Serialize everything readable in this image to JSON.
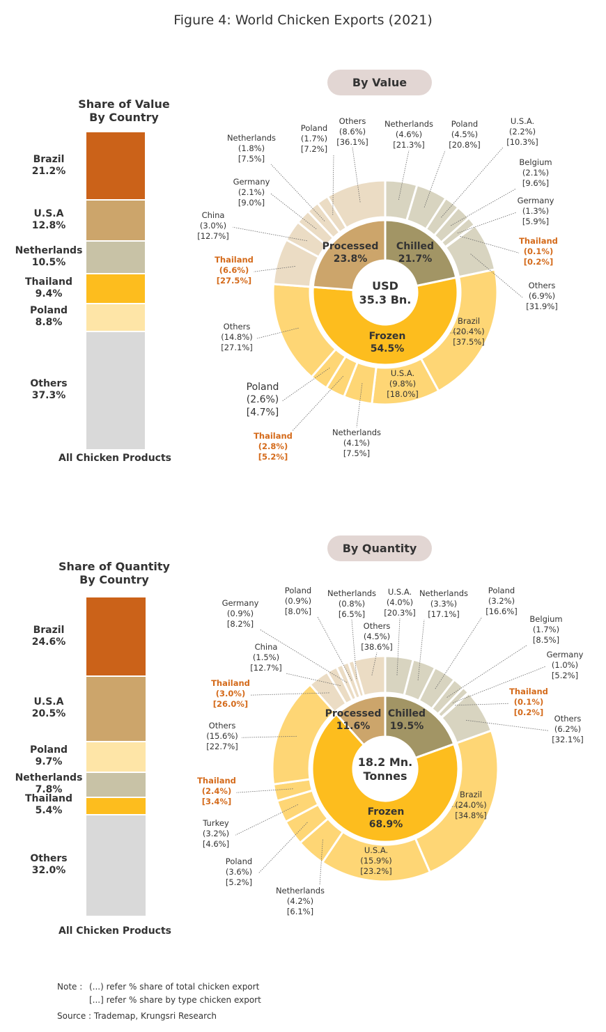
{
  "title": "Figure 4: World Chicken Exports (2021)",
  "colors": {
    "brazil": "#cb6219",
    "usa": "#cca56b",
    "netherlands": "#c8c2a6",
    "thailand": "#fdbd1e",
    "poland": "#fee5a7",
    "others": "#d9d9d9",
    "chilled": "#a29565",
    "processed": "#cca56b",
    "frozen": "#fdbd1e",
    "chilled_outer": "#d8d4c0",
    "processed_outer": "#ebdcc4",
    "frozen_outer": "#fed675",
    "highlight": "#d46a1a"
  },
  "notes": {
    "note_prefix": "Note :",
    "line1": "(...) refer % share of total chicken export",
    "line2": "[...] refer % share by type chicken export",
    "source": "Source : Trademap, Krungsri Research"
  },
  "chart_data": [
    {
      "type": "bar",
      "title": "Share of Value",
      "subtitle": "By Country",
      "xlabel": "All Chicken Products",
      "stacked": true,
      "series": [
        {
          "name": "Brazil",
          "value": 21.2,
          "label": "21.2%",
          "color": "brazil"
        },
        {
          "name": "U.S.A",
          "value": 12.8,
          "label": "12.8%",
          "color": "usa"
        },
        {
          "name": "Netherlands",
          "value": 10.5,
          "label": "10.5%",
          "color": "netherlands"
        },
        {
          "name": "Thailand",
          "value": 9.4,
          "label": "9.4%",
          "color": "thailand"
        },
        {
          "name": "Poland",
          "value": 8.8,
          "label": "8.8%",
          "color": "poland"
        },
        {
          "name": "Others",
          "value": 37.3,
          "label": "37.3%",
          "color": "others"
        }
      ]
    },
    {
      "type": "pie",
      "title": "By Value",
      "center_lines": [
        "USD",
        "35.3 Bn."
      ],
      "inner": [
        {
          "name": "Chilled",
          "value": 21.7,
          "label": "21.7%",
          "color": "chilled"
        },
        {
          "name": "Frozen",
          "value": 54.5,
          "label": "54.5%",
          "color": "frozen"
        },
        {
          "name": "Processed",
          "value": 23.8,
          "label": "23.8%",
          "color": "processed"
        }
      ],
      "outer": [
        {
          "group": "Chilled",
          "name": "Netherlands",
          "total": "(4.6%)",
          "by_type": "[21.3%]",
          "value": 4.6
        },
        {
          "group": "Chilled",
          "name": "Poland",
          "total": "(4.5%)",
          "by_type": "[20.8%]",
          "value": 4.5
        },
        {
          "group": "Chilled",
          "name": "U.S.A.",
          "total": "(2.2%)",
          "by_type": "[10.3%]",
          "value": 2.2
        },
        {
          "group": "Chilled",
          "name": "Belgium",
          "total": "(2.1%)",
          "by_type": "[9.6%]",
          "value": 2.1
        },
        {
          "group": "Chilled",
          "name": "Germany",
          "total": "(1.3%)",
          "by_type": "[5.9%]",
          "value": 1.3
        },
        {
          "group": "Chilled",
          "name": "Thailand",
          "total": "(0.1%)",
          "by_type": "[0.2%]",
          "value": 0.1,
          "highlight": true
        },
        {
          "group": "Chilled",
          "name": "Others",
          "total": "(6.9%)",
          "by_type": "[31.9%]",
          "value": 6.9
        },
        {
          "group": "Frozen",
          "name": "Brazil",
          "total": "(20.4%)",
          "by_type": "[37.5%]",
          "value": 20.4
        },
        {
          "group": "Frozen",
          "name": "U.S.A.",
          "total": "(9.8%)",
          "by_type": "[18.0%]",
          "value": 9.8
        },
        {
          "group": "Frozen",
          "name": "Netherlands",
          "total": "(4.1%)",
          "by_type": "[7.5%]",
          "value": 4.1
        },
        {
          "group": "Frozen",
          "name": "Thailand",
          "total": "(2.8%)",
          "by_type": "[5.2%]",
          "value": 2.8,
          "highlight": true
        },
        {
          "group": "Frozen",
          "name": "Poland",
          "total": "(2.6%)",
          "by_type": "[4.7%]",
          "value": 2.6
        },
        {
          "group": "Frozen",
          "name": "Others",
          "total": "(14.8%)",
          "by_type": "[27.1%]",
          "value": 14.8
        },
        {
          "group": "Processed",
          "name": "Thailand",
          "total": "(6.6%)",
          "by_type": "[27.5%]",
          "value": 6.6,
          "highlight": true
        },
        {
          "group": "Processed",
          "name": "China",
          "total": "(3.0%)",
          "by_type": "[12.7%]",
          "value": 3.0
        },
        {
          "group": "Processed",
          "name": "Germany",
          "total": "(2.1%)",
          "by_type": "[9.0%]",
          "value": 2.1
        },
        {
          "group": "Processed",
          "name": "Netherlands",
          "total": "(1.8%)",
          "by_type": "[7.5%]",
          "value": 1.8
        },
        {
          "group": "Processed",
          "name": "Poland",
          "total": "(1.7%)",
          "by_type": "[7.2%]",
          "value": 1.7
        },
        {
          "group": "Processed",
          "name": "Others",
          "total": "(8.6%)",
          "by_type": "[36.1%]",
          "value": 8.6
        }
      ]
    },
    {
      "type": "bar",
      "title": "Share of Quantity",
      "subtitle": "By Country",
      "xlabel": "All Chicken Products",
      "stacked": true,
      "series": [
        {
          "name": "Brazil",
          "value": 24.6,
          "label": "24.6%",
          "color": "brazil"
        },
        {
          "name": "U.S.A",
          "value": 20.5,
          "label": "20.5%",
          "color": "usa"
        },
        {
          "name": "Poland",
          "value": 9.7,
          "label": "9.7%",
          "color": "poland"
        },
        {
          "name": "Netherlands",
          "value": 7.8,
          "label": "7.8%",
          "color": "netherlands"
        },
        {
          "name": "Thailand",
          "value": 5.4,
          "label": "5.4%",
          "color": "thailand"
        },
        {
          "name": "Others",
          "value": 32.0,
          "label": "32.0%",
          "color": "others"
        }
      ]
    },
    {
      "type": "pie",
      "title": "By Quantity",
      "center_lines": [
        "18.2 Mn.",
        "Tonnes"
      ],
      "inner": [
        {
          "name": "Chilled",
          "value": 19.5,
          "label": "19.5%",
          "color": "chilled"
        },
        {
          "name": "Frozen",
          "value": 68.9,
          "label": "68.9%",
          "color": "frozen"
        },
        {
          "name": "Processed",
          "value": 11.6,
          "label": "11.6%",
          "color": "processed"
        }
      ],
      "outer": [
        {
          "group": "Chilled",
          "name": "U.S.A.",
          "total": "(4.0%)",
          "by_type": "[20.3%]",
          "value": 4.0
        },
        {
          "group": "Chilled",
          "name": "Netherlands",
          "total": "(3.3%)",
          "by_type": "[17.1%]",
          "value": 3.3
        },
        {
          "group": "Chilled",
          "name": "Poland",
          "total": "(3.2%)",
          "by_type": "[16.6%]",
          "value": 3.2
        },
        {
          "group": "Chilled",
          "name": "Belgium",
          "total": "(1.7%)",
          "by_type": "[8.5%]",
          "value": 1.7
        },
        {
          "group": "Chilled",
          "name": "Germany",
          "total": "(1.0%)",
          "by_type": "[5.2%]",
          "value": 1.0
        },
        {
          "group": "Chilled",
          "name": "Thailand",
          "total": "(0.1%)",
          "by_type": "[0.2%]",
          "value": 0.1,
          "highlight": true
        },
        {
          "group": "Chilled",
          "name": "Others",
          "total": "(6.2%)",
          "by_type": "[32.1%]",
          "value": 6.2
        },
        {
          "group": "Frozen",
          "name": "Brazil",
          "total": "(24.0%)",
          "by_type": "[34.8%]",
          "value": 24.0
        },
        {
          "group": "Frozen",
          "name": "U.S.A.",
          "total": "(15.9%)",
          "by_type": "[23.2%]",
          "value": 15.9
        },
        {
          "group": "Frozen",
          "name": "Netherlands",
          "total": "(4.2%)",
          "by_type": "[6.1%]",
          "value": 4.2
        },
        {
          "group": "Frozen",
          "name": "Poland",
          "total": "(3.6%)",
          "by_type": "[5.2%]",
          "value": 3.6
        },
        {
          "group": "Frozen",
          "name": "Turkey",
          "total": "(3.2%)",
          "by_type": "[4.6%]",
          "value": 3.2
        },
        {
          "group": "Frozen",
          "name": "Thailand",
          "total": "(2.4%)",
          "by_type": "[3.4%]",
          "value": 2.4,
          "highlight": true
        },
        {
          "group": "Frozen",
          "name": "Others",
          "total": "(15.6%)",
          "by_type": "[22.7%]",
          "value": 15.6
        },
        {
          "group": "Processed",
          "name": "Thailand",
          "total": "(3.0%)",
          "by_type": "[26.0%]",
          "value": 3.0,
          "highlight": true
        },
        {
          "group": "Processed",
          "name": "China",
          "total": "(1.5%)",
          "by_type": "[12.7%]",
          "value": 1.5
        },
        {
          "group": "Processed",
          "name": "Germany",
          "total": "(0.9%)",
          "by_type": "[8.2%]",
          "value": 0.9
        },
        {
          "group": "Processed",
          "name": "Poland",
          "total": "(0.9%)",
          "by_type": "[8.0%]",
          "value": 0.9
        },
        {
          "group": "Processed",
          "name": "Netherlands",
          "total": "(0.8%)",
          "by_type": "[6.5%]",
          "value": 0.8
        },
        {
          "group": "Processed",
          "name": "Others",
          "total": "(4.5%)",
          "by_type": "[38.6%]",
          "value": 4.5
        }
      ]
    }
  ]
}
